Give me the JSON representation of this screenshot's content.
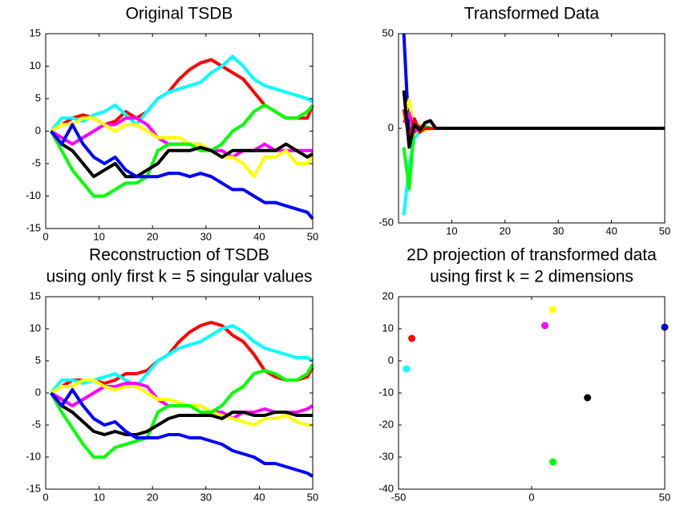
{
  "chart_data": [
    {
      "type": "line",
      "title": [
        "Original TSDB"
      ],
      "x": [
        1,
        3,
        5,
        7,
        9,
        11,
        13,
        15,
        17,
        19,
        21,
        23,
        25,
        27,
        29,
        31,
        33,
        35,
        37,
        39,
        41,
        43,
        45,
        47,
        49,
        50
      ],
      "series": [
        {
          "color": "#ff0000",
          "values": [
            0,
            1,
            2,
            2.5,
            2,
            1,
            1.5,
            3,
            2,
            3,
            5,
            6,
            8,
            9.5,
            10.5,
            11,
            10,
            9,
            8,
            6,
            4,
            3,
            2,
            2,
            2,
            4
          ]
        },
        {
          "color": "#00ffff",
          "values": [
            0,
            2,
            2,
            1.5,
            2.5,
            3,
            4,
            2.5,
            1,
            3,
            5,
            6,
            6.5,
            7,
            7.5,
            9,
            10,
            11.5,
            10,
            8,
            7,
            6.5,
            6,
            5.5,
            5,
            4.5
          ]
        },
        {
          "color": "#ff00ff",
          "values": [
            0,
            -1,
            -2,
            -1,
            0,
            1,
            1,
            2,
            2,
            1,
            -1,
            -2,
            -2,
            -2,
            -2,
            -3,
            -3,
            -4,
            -3,
            -3,
            -2,
            -3,
            -3,
            -3,
            -3,
            -3
          ]
        },
        {
          "color": "#ffff00",
          "values": [
            0,
            1,
            1,
            2,
            2,
            1,
            0,
            1,
            1,
            0,
            -1,
            -1,
            -1,
            -2,
            -2,
            -3,
            -4,
            -4,
            -5,
            -7,
            -4,
            -4,
            -3,
            -5,
            -5,
            -4
          ]
        },
        {
          "color": "#00ff00",
          "values": [
            0,
            -3,
            -6,
            -8,
            -10,
            -10,
            -9,
            -8,
            -8,
            -7,
            -3,
            -2,
            -2,
            -2,
            -3,
            -3,
            -2,
            0,
            1,
            3,
            4,
            3,
            2,
            2,
            3,
            4
          ]
        },
        {
          "color": "#000000",
          "values": [
            0,
            -2,
            -3,
            -5,
            -7,
            -6,
            -5,
            -7,
            -7,
            -6,
            -5,
            -3,
            -3,
            -3,
            -2.5,
            -3,
            -4,
            -3,
            -3,
            -3,
            -3,
            -3,
            -2,
            -3,
            -4,
            -3.5
          ]
        },
        {
          "color": "#0000ff",
          "values": [
            0,
            -2,
            1,
            -2,
            -4,
            -5,
            -4,
            -6,
            -7,
            -7,
            -7,
            -6.5,
            -6.5,
            -7,
            -6.5,
            -7,
            -8,
            -9,
            -9,
            -10,
            -11,
            -11,
            -11.5,
            -12,
            -12.5,
            -13.5
          ]
        }
      ],
      "xlim": [
        0,
        50
      ],
      "xticks": [
        0,
        10,
        20,
        30,
        40,
        50
      ],
      "ylim": [
        -15,
        15
      ],
      "yticks": [
        -15,
        -10,
        -5,
        0,
        5,
        10,
        15
      ]
    },
    {
      "type": "line",
      "title": [
        "Transformed Data"
      ],
      "x": [
        1,
        2,
        3,
        4,
        5,
        6,
        7,
        50
      ],
      "series": [
        {
          "color": "#0000ff",
          "values": [
            50,
            -5,
            2,
            -1,
            0,
            0,
            0,
            0
          ]
        },
        {
          "color": "#00ffff",
          "values": [
            -46,
            -20,
            -5,
            -2,
            0,
            0,
            0,
            0
          ]
        },
        {
          "color": "#00ff00",
          "values": [
            -10,
            -32,
            3,
            -2,
            1,
            0,
            0,
            0
          ]
        },
        {
          "color": "#ffff00",
          "values": [
            5,
            15,
            -3,
            2,
            -1,
            0,
            0,
            0
          ]
        },
        {
          "color": "#ff00ff",
          "values": [
            3,
            8,
            -2,
            1,
            0,
            0,
            0,
            0
          ]
        },
        {
          "color": "#ff0000",
          "values": [
            10,
            -5,
            5,
            -2,
            0,
            0,
            0,
            0
          ]
        },
        {
          "color": "#000000",
          "values": [
            20,
            -10,
            2,
            -1,
            3,
            4,
            0,
            0
          ]
        }
      ],
      "xlim": [
        0,
        50
      ],
      "xticks": [
        10,
        20,
        30,
        40,
        50
      ],
      "ylim": [
        -50,
        50
      ],
      "yticks": [
        -50,
        0,
        50
      ]
    },
    {
      "type": "line",
      "title": [
        "Reconstruction of TSDB",
        "using only first k = 5 singular values"
      ],
      "x": [
        1,
        3,
        5,
        7,
        9,
        11,
        13,
        15,
        17,
        19,
        21,
        23,
        25,
        27,
        29,
        31,
        33,
        35,
        37,
        39,
        41,
        43,
        45,
        47,
        49,
        50
      ],
      "series": [
        {
          "color": "#ff0000",
          "values": [
            0,
            1,
            2,
            2,
            2,
            1.5,
            2,
            3,
            3,
            3.5,
            5,
            6,
            8,
            9.5,
            10.5,
            11,
            10.5,
            9,
            8,
            6,
            3.5,
            2.5,
            2,
            2,
            2.5,
            4
          ]
        },
        {
          "color": "#00ffff",
          "values": [
            0,
            2,
            2,
            1.5,
            2,
            2.5,
            3,
            2,
            1,
            3,
            5,
            6,
            7,
            7.5,
            8,
            9,
            10,
            10.5,
            9.5,
            8,
            7,
            6.5,
            6,
            5.5,
            5.5,
            5
          ]
        },
        {
          "color": "#ff00ff",
          "values": [
            0,
            -1,
            -2,
            -1,
            0,
            1,
            1,
            1.5,
            1.5,
            1,
            -1,
            -2,
            -2,
            -2,
            -2,
            -3,
            -3,
            -4,
            -3,
            -3,
            -2.5,
            -3,
            -3,
            -3,
            -2.5,
            -2
          ]
        },
        {
          "color": "#ffff00",
          "values": [
            0,
            1,
            1,
            2,
            2,
            1,
            0.5,
            1,
            1,
            0,
            -1,
            -1,
            -1.5,
            -2,
            -2,
            -3,
            -3.5,
            -4,
            -4.5,
            -5,
            -4,
            -4,
            -3.5,
            -4.5,
            -5,
            -5
          ]
        },
        {
          "color": "#00ff00",
          "values": [
            0,
            -3,
            -5.5,
            -8,
            -10,
            -10,
            -8.5,
            -8,
            -7.5,
            -7,
            -3,
            -2,
            -2,
            -2,
            -3,
            -3,
            -2,
            0,
            1,
            3,
            3.5,
            3,
            2,
            2,
            3,
            4.5
          ]
        },
        {
          "color": "#000000",
          "values": [
            0,
            -2,
            -3,
            -4.5,
            -6,
            -6.5,
            -6,
            -6.5,
            -6.5,
            -6,
            -5,
            -4,
            -3.5,
            -3.5,
            -3.5,
            -3.5,
            -4,
            -3,
            -3,
            -3.5,
            -3.5,
            -3,
            -3,
            -3.5,
            -3.5,
            -3.5
          ]
        },
        {
          "color": "#0000ff",
          "values": [
            0,
            -2,
            0.5,
            -2,
            -4,
            -5,
            -4.5,
            -6,
            -7,
            -7,
            -7,
            -6.5,
            -6.5,
            -7,
            -7,
            -7.5,
            -8,
            -9,
            -9.5,
            -10,
            -11,
            -11,
            -11.5,
            -12,
            -12.5,
            -13
          ]
        }
      ],
      "xlim": [
        0,
        50
      ],
      "xticks": [
        0,
        10,
        20,
        30,
        40,
        50
      ],
      "ylim": [
        -15,
        15
      ],
      "yticks": [
        -15,
        -10,
        -5,
        0,
        5,
        10,
        15
      ]
    },
    {
      "type": "scatter",
      "title": [
        "2D projection of transformed data",
        "using first k = 2 dimensions"
      ],
      "x": [
        -45,
        -47,
        5,
        8,
        8,
        21,
        50
      ],
      "values": [
        7,
        -2.5,
        11,
        16,
        -31.5,
        -11.5,
        10.5
      ],
      "colors": [
        "#ff0000",
        "#00ffff",
        "#ff00ff",
        "#ffff00",
        "#00ff00",
        "#000000",
        "#0000ff"
      ],
      "xlim": [
        -50,
        50
      ],
      "xticks": [
        -50,
        0,
        50
      ],
      "ylim": [
        -40,
        20
      ],
      "yticks": [
        -40,
        -30,
        -20,
        -10,
        0,
        10,
        20
      ]
    }
  ]
}
